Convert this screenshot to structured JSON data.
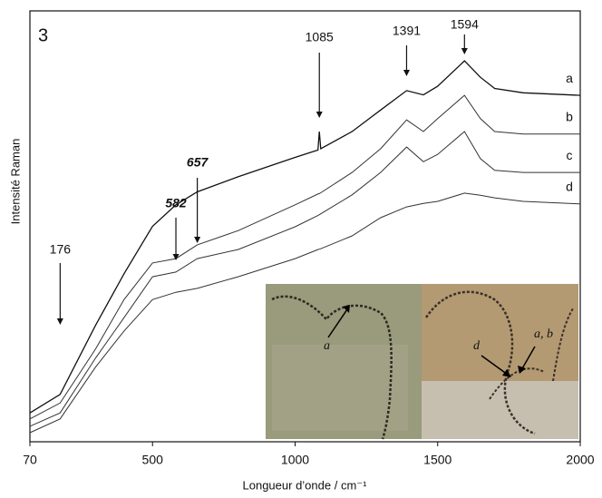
{
  "chart_data": {
    "type": "line",
    "panel_label": "3",
    "x_label": "Longueur d’onde / cm⁻¹",
    "y_label": "Intensité Raman",
    "x": [
      70,
      176,
      300,
      400,
      500,
      582,
      657,
      800,
      1000,
      1080,
      1085,
      1090,
      1200,
      1300,
      1391,
      1450,
      1500,
      1594,
      1650,
      1700,
      1800,
      2000
    ],
    "series": [
      {
        "name": "a",
        "color": "#111111",
        "values": [
          6.7,
          11,
          27,
          39,
          50,
          55,
          58,
          61.5,
          66,
          67.7,
          72,
          68,
          72,
          77,
          81.5,
          80.5,
          82.5,
          88.4,
          84.6,
          82,
          81,
          80.4
        ]
      },
      {
        "name": "b",
        "color": "#333333",
        "values": [
          5.3,
          9,
          21.5,
          33,
          41.5,
          42.5,
          45.7,
          49,
          55,
          57.5,
          57.6,
          57.8,
          62.5,
          68,
          74.7,
          72,
          75,
          80.4,
          75,
          72,
          71.4,
          71.4
        ]
      },
      {
        "name": "c",
        "color": "#333333",
        "values": [
          3.6,
          6.7,
          19.4,
          28.8,
          38.3,
          39.4,
          42.5,
          44.6,
          49.9,
          52.5,
          52.7,
          52.9,
          57.3,
          62.5,
          68.4,
          65,
          66.7,
          72,
          65.7,
          63,
          62.5,
          62.5
        ]
      },
      {
        "name": "d",
        "color": "#333333",
        "values": [
          2.1,
          5.3,
          17.3,
          25.7,
          33,
          34.7,
          35.6,
          38.3,
          42.5,
          44.6,
          44.7,
          44.8,
          47.8,
          52,
          54.5,
          55.3,
          55.8,
          57.7,
          57.2,
          56.6,
          55.8,
          55.2
        ]
      }
    ],
    "peak_labels": [
      176,
      582,
      657,
      1085,
      1391,
      1594
    ],
    "xlim": [
      70,
      2000
    ],
    "xticks": [
      70,
      500,
      1000,
      1500,
      2000
    ],
    "ylim": [
      0,
      100
    ],
    "inset": {
      "labels": [
        "a",
        "d",
        "a, b"
      ]
    }
  }
}
